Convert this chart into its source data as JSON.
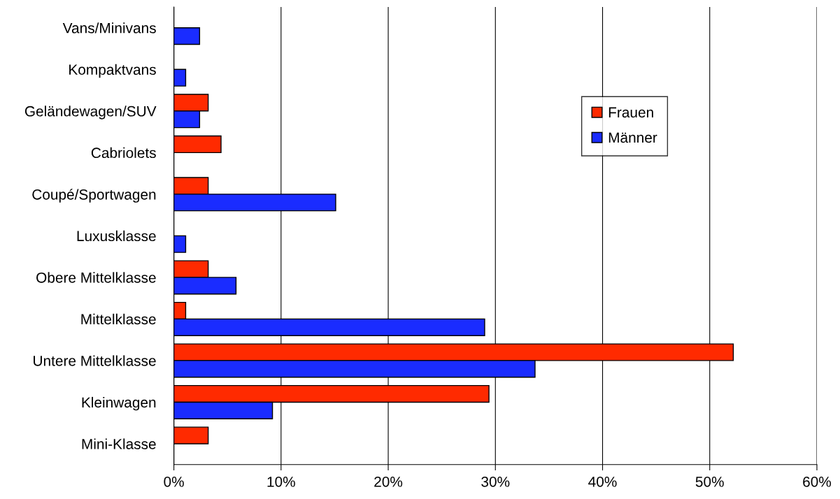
{
  "chart_data": {
    "type": "bar",
    "orientation": "horizontal",
    "categories": [
      "Vans/Minivans",
      "Kompaktvans",
      "Geländewagen/SUV",
      "Cabriolets",
      "Coupé/Sportwagen",
      "Luxusklasse",
      "Obere Mittelklasse",
      "Mittelklasse",
      "Untere Mittelklasse",
      "Kleinwagen",
      "Mini-Klasse"
    ],
    "series": [
      {
        "name": "Frauen",
        "color": "#ff2a00",
        "values": [
          null,
          null,
          3.2,
          4.4,
          3.2,
          null,
          3.2,
          1.1,
          52.2,
          29.4,
          3.2
        ]
      },
      {
        "name": "Männer",
        "color": "#1a2cff",
        "values": [
          2.4,
          1.1,
          2.4,
          null,
          15.1,
          1.1,
          5.8,
          29.0,
          33.7,
          9.2,
          null
        ]
      }
    ],
    "xlim": [
      0,
      60
    ],
    "xticks": [
      {
        "value": 0,
        "label": "0%"
      },
      {
        "value": 10,
        "label": "10%"
      },
      {
        "value": 20,
        "label": "20%"
      },
      {
        "value": 30,
        "label": "30%"
      },
      {
        "value": 40,
        "label": "40%"
      },
      {
        "value": 50,
        "label": "50%"
      },
      {
        "value": 60,
        "label": "60%"
      }
    ],
    "grid": "x",
    "legend": "top right"
  }
}
